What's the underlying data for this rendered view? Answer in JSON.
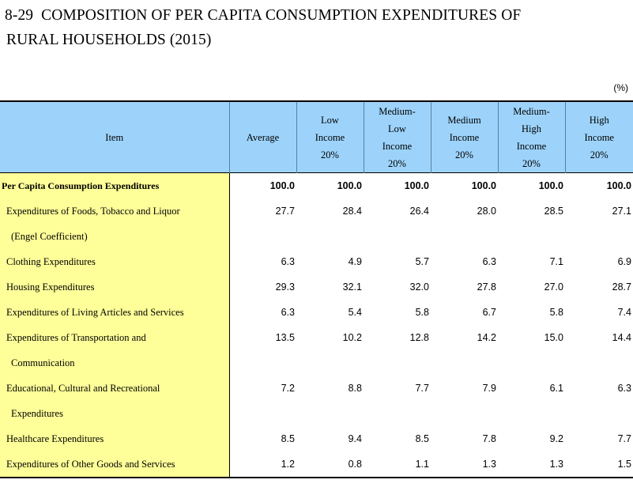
{
  "title_line1": "8-29  COMPOSITION OF PER CAPITA CONSUMPTION EXPENDITURES OF",
  "title_line2": "RURAL HOUSEHOLDS (2015)",
  "unit": "(%)",
  "headers": {
    "item": "Item",
    "average": "Average",
    "low": [
      "Low",
      "Income",
      "20%"
    ],
    "medium_low": [
      "Medium-",
      "Low",
      "Income",
      "20%"
    ],
    "medium": [
      "Medium",
      "Income",
      "20%"
    ],
    "medium_high": [
      "Medium-",
      "High",
      "Income",
      "20%"
    ],
    "high": [
      "High",
      "Income",
      "20%"
    ]
  },
  "rows": [
    {
      "label": "Per Capita Consumption Expenditures",
      "values": [
        "100.0",
        "100.0",
        "100.0",
        "100.0",
        "100.0",
        "100.0"
      ]
    },
    {
      "label": "Expenditures of Foods, Tobacco and Liquor",
      "values": [
        "27.7",
        "28.4",
        "26.4",
        "28.0",
        "28.5",
        "27.1"
      ]
    },
    {
      "label": "(Engel Coefficient)",
      "values": [
        "",
        "",
        "",
        "",
        "",
        ""
      ]
    },
    {
      "label": "Clothing Expenditures",
      "values": [
        "6.3",
        "4.9",
        "5.7",
        "6.3",
        "7.1",
        "6.9"
      ]
    },
    {
      "label": "Housing Expenditures",
      "values": [
        "29.3",
        "32.1",
        "32.0",
        "27.8",
        "27.0",
        "28.7"
      ]
    },
    {
      "label": "Expenditures of Living Articles and Services",
      "values": [
        "6.3",
        "5.4",
        "5.8",
        "6.7",
        "5.8",
        "7.4"
      ]
    },
    {
      "label": "Expenditures of Transportation and",
      "values": [
        "13.5",
        "10.2",
        "12.8",
        "14.2",
        "15.0",
        "14.4"
      ]
    },
    {
      "label": "Communication",
      "values": [
        "",
        "",
        "",
        "",
        "",
        ""
      ]
    },
    {
      "label": "Educational, Cultural and Recreational",
      "values": [
        "7.2",
        "8.8",
        "7.7",
        "7.9",
        "6.1",
        "6.3"
      ]
    },
    {
      "label": "Expenditures",
      "values": [
        "",
        "",
        "",
        "",
        "",
        ""
      ]
    },
    {
      "label": "Healthcare Expenditures",
      "values": [
        "8.5",
        "9.4",
        "8.5",
        "7.8",
        "9.2",
        "7.7"
      ]
    },
    {
      "label": "Expenditures of Other Goods and Services",
      "values": [
        "1.2",
        "0.8",
        "1.1",
        "1.3",
        "1.3",
        "1.5"
      ]
    }
  ]
}
